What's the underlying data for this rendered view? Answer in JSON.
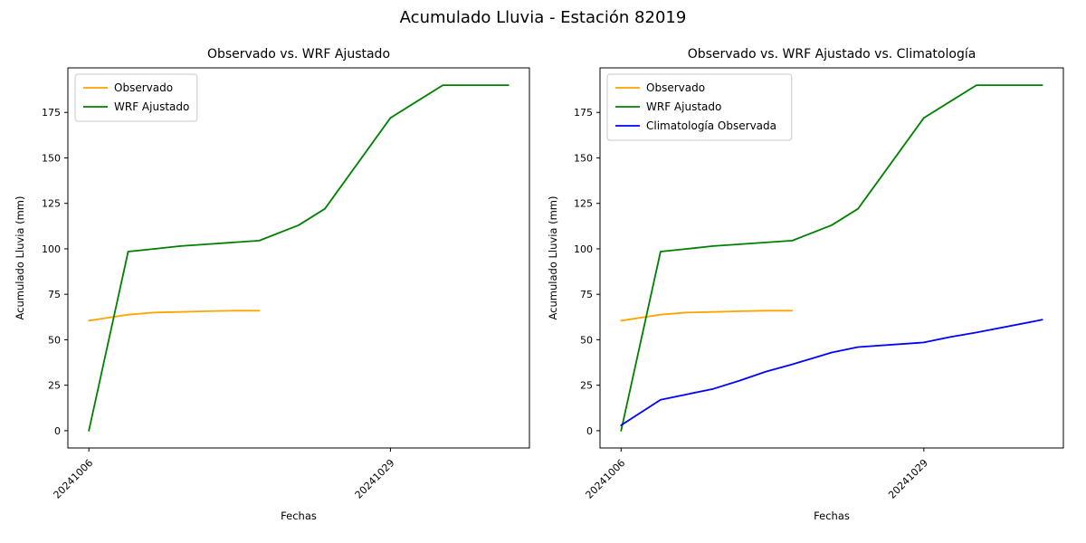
{
  "figure": {
    "title": "Acumulado Lluvia - Estación 82019",
    "background": "#ffffff",
    "text_color": "#000000"
  },
  "chart_data": [
    {
      "type": "line",
      "title": "Observado vs. WRF Ajustado",
      "xlabel": "Fechas",
      "ylabel": "Acumulado Lluvia (mm)",
      "grid": false,
      "legend_position": "upper-left",
      "x_days": [
        0,
        3,
        5,
        7,
        9,
        11,
        13,
        16,
        18,
        23,
        25,
        27,
        32
      ],
      "x_ticks": [
        {
          "day": 0,
          "label": "20241006"
        },
        {
          "day": 23,
          "label": "20241029"
        }
      ],
      "y_ticks": [
        0,
        25,
        50,
        75,
        100,
        125,
        150,
        175
      ],
      "xlim": [
        -1.6,
        33.6
      ],
      "ylim": [
        -9.5,
        199.5
      ],
      "series": [
        {
          "name": "Observado",
          "color": "#ffa500",
          "values": [
            60.5,
            63.8,
            65,
            65.3,
            65.7,
            66,
            66,
            null,
            null,
            null,
            null,
            null,
            null
          ]
        },
        {
          "name": "WRF Ajustado",
          "color": "#008000",
          "values": [
            0,
            98.5,
            100,
            101.5,
            102.5,
            103.5,
            104.5,
            113,
            122,
            172,
            181,
            190,
            190
          ]
        }
      ]
    },
    {
      "type": "line",
      "title": "Observado vs. WRF Ajustado vs. Climatología",
      "xlabel": "Fechas",
      "ylabel": "Acumulado Lluvia (mm)",
      "grid": false,
      "legend_position": "upper-left",
      "x_days": [
        0,
        3,
        5,
        7,
        9,
        11,
        13,
        16,
        18,
        23,
        25,
        27,
        32
      ],
      "x_ticks": [
        {
          "day": 0,
          "label": "20241006"
        },
        {
          "day": 23,
          "label": "20241029"
        }
      ],
      "y_ticks": [
        0,
        25,
        50,
        75,
        100,
        125,
        150,
        175
      ],
      "xlim": [
        -1.6,
        33.6
      ],
      "ylim": [
        -9.5,
        199.5
      ],
      "series": [
        {
          "name": "Observado",
          "color": "#ffa500",
          "values": [
            60.5,
            63.8,
            65,
            65.3,
            65.7,
            66,
            66,
            null,
            null,
            null,
            null,
            null,
            null
          ]
        },
        {
          "name": "WRF Ajustado",
          "color": "#008000",
          "values": [
            0,
            98.5,
            100,
            101.5,
            102.5,
            103.5,
            104.5,
            113,
            122,
            172,
            181,
            190,
            190
          ]
        },
        {
          "name": "Climatología Observada",
          "color": "#0000ff",
          "values": [
            3,
            17,
            20,
            23,
            27.5,
            32.5,
            36.5,
            43,
            46,
            48.5,
            51.5,
            54,
            61
          ]
        }
      ]
    }
  ]
}
